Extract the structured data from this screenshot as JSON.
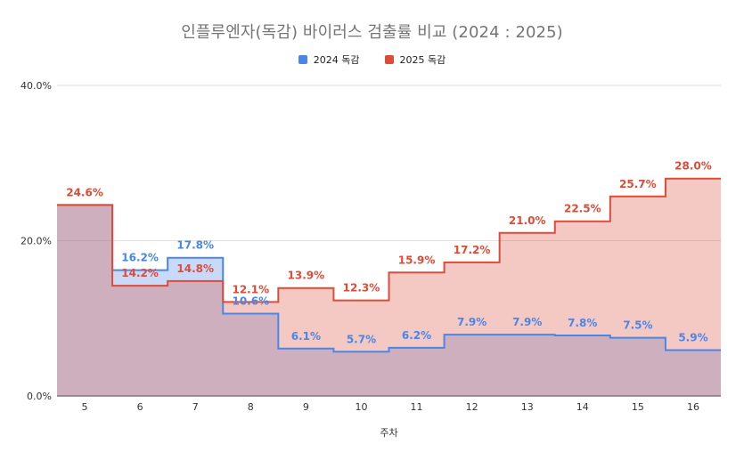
{
  "chart_data": {
    "type": "area",
    "title": "인플루엔자(독감) 바이러스 검출률 비교 (2024 : 2025)",
    "xlabel": "주차",
    "ylabel": "",
    "ylim": [
      0,
      40
    ],
    "y_ticks": [
      "0.0%",
      "20.0%",
      "40.0%"
    ],
    "categories": [
      "5",
      "6",
      "7",
      "8",
      "9",
      "10",
      "11",
      "12",
      "13",
      "14",
      "15",
      "16"
    ],
    "step": true,
    "grid": true,
    "legend_position": "top",
    "series": [
      {
        "name": "2024 독감",
        "color": "#4a86e8",
        "values": [
          24.6,
          16.2,
          17.8,
          10.6,
          6.1,
          5.7,
          6.2,
          7.9,
          7.9,
          7.8,
          7.5,
          5.9
        ],
        "labels": [
          "",
          "16.2%",
          "17.8%",
          "10.6%",
          "6.1%",
          "5.7%",
          "6.2%",
          "7.9%",
          "7.9%",
          "7.8%",
          "7.5%",
          "5.9%"
        ]
      },
      {
        "name": "2025 독감",
        "color": "#dd4b39",
        "values": [
          24.6,
          14.2,
          14.8,
          12.1,
          13.9,
          12.3,
          15.9,
          17.2,
          21.0,
          22.5,
          25.7,
          28.0
        ],
        "labels": [
          "24.6%",
          "14.2%",
          "14.8%",
          "12.1%",
          "13.9%",
          "12.3%",
          "15.9%",
          "17.2%",
          "21.0%",
          "22.5%",
          "25.7%",
          "28.0%"
        ]
      }
    ]
  }
}
